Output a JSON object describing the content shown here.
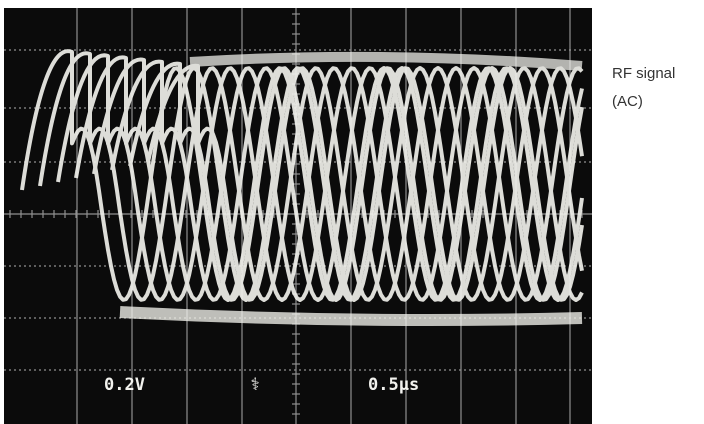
{
  "screen": {
    "volts_per_div": "0.2V",
    "time_per_div": "0.5µs"
  },
  "caption": {
    "line1": "RF signal",
    "line2": "(AC)"
  }
}
